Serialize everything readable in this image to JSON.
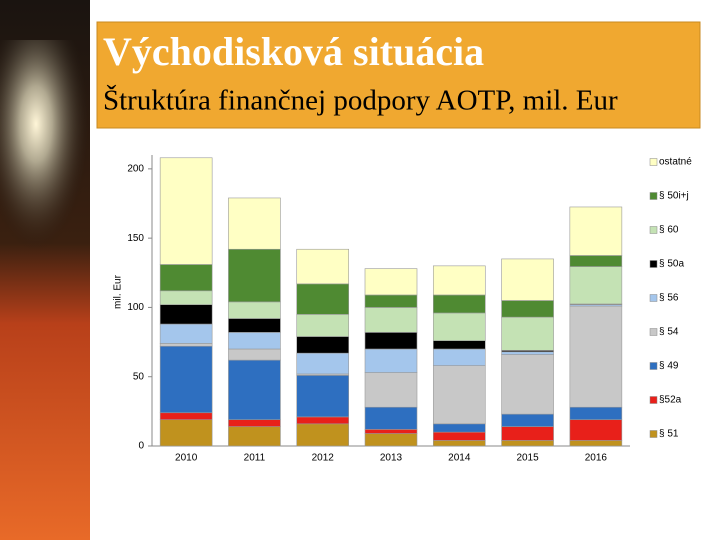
{
  "chart_data": {
    "type": "stacked_bar",
    "title": "Východisková situácia",
    "subtitle": "Štruktúra finančnej podpory AOTP, mil. Eur",
    "y_label": "mil. Eur",
    "categories": [
      "2010",
      "2011",
      "2012",
      "2013",
      "2014",
      "2015",
      "2016"
    ],
    "series": [
      {
        "name": "§ 51",
        "color": "#c0921e",
        "values": [
          19,
          14,
          16,
          9,
          4,
          4,
          4
        ]
      },
      {
        "name": "§52a",
        "color": "#e8201a",
        "values": [
          5,
          5,
          5,
          3,
          6,
          10,
          15
        ]
      },
      {
        "name": "§ 49",
        "color": "#2e6fc0",
        "values": [
          48,
          43,
          30,
          16,
          6,
          9,
          9
        ]
      },
      {
        "name": "§ 54",
        "color": "#c8c8c8",
        "values": [
          2,
          8,
          1,
          25,
          42,
          43,
          73
        ]
      },
      {
        "name": "§ 56",
        "color": "#a4c6ec",
        "values": [
          14,
          12,
          15,
          17,
          12,
          2,
          1
        ]
      },
      {
        "name": "§ 50a",
        "color": "#000000",
        "values": [
          14,
          10,
          12,
          12,
          6,
          1,
          0.5
        ]
      },
      {
        "name": "§ 60",
        "color": "#c4e2b4",
        "values": [
          10,
          12,
          16,
          18,
          20,
          24,
          27
        ]
      },
      {
        "name": "§ 50i+j",
        "color": "#4f8a32",
        "values": [
          19,
          38,
          22,
          9,
          13,
          12,
          8
        ]
      },
      {
        "name": "ostatné",
        "color": "#ffffc4",
        "values": [
          77,
          37,
          25,
          19,
          21,
          30,
          35
        ]
      }
    ],
    "ylim": [
      0,
      210
    ],
    "yticks": [
      0,
      50,
      100,
      150,
      200
    ],
    "legend": "right"
  }
}
